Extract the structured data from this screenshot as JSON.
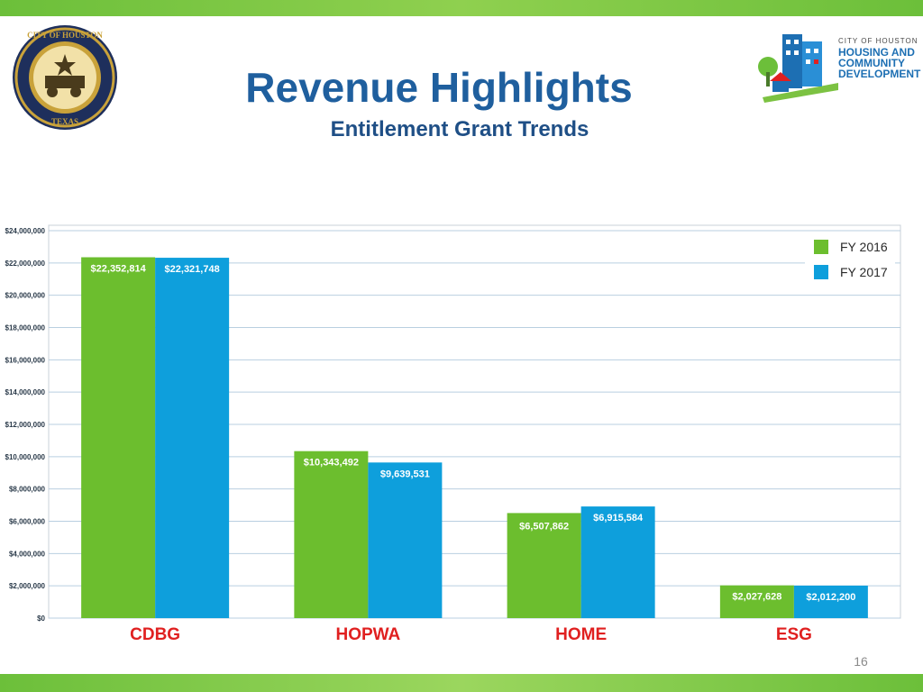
{
  "slide": {
    "title": "Revenue Highlights",
    "subtitle": "Entitlement Grant Trends",
    "page_number": "16",
    "logo": {
      "line1": "CITY OF HOUSTON",
      "line2": "HOUSING AND",
      "line3": "COMMUNITY",
      "line4": "DEVELOPMENT"
    },
    "seal_text": "CITY OF HOUSTON TEXAS"
  },
  "colors": {
    "fy2016": "#6cbe2e",
    "fy2017": "#0e9fdc",
    "title": "#1f5f9e",
    "category_label": "#e02020",
    "accent_bar": "#6cbf3a"
  },
  "chart_data": {
    "type": "bar",
    "categories": [
      "CDBG",
      "HOPWA",
      "HOME",
      "ESG"
    ],
    "series": [
      {
        "name": "FY 2016",
        "values": [
          22352814,
          10343492,
          6507862,
          2027628
        ],
        "labels": [
          "$22,352,814",
          "$10,343,492",
          "$6,507,862",
          "$2,027,628"
        ]
      },
      {
        "name": "FY 2017",
        "values": [
          22321748,
          9639531,
          6915584,
          2012200
        ],
        "labels": [
          "$22,321,748",
          "$9,639,531",
          "$6,915,584",
          "$2,012,200"
        ]
      }
    ],
    "yticks": [
      "$0",
      "$2,000,000",
      "$4,000,000",
      "$6,000,000",
      "$8,000,000",
      "$10,000,000",
      "$12,000,000",
      "$14,000,000",
      "$16,000,000",
      "$18,000,000",
      "$20,000,000",
      "$22,000,000",
      "$24,000,000"
    ],
    "ylim": [
      0,
      24000000
    ],
    "grid": true,
    "legend_position": "top-right"
  }
}
